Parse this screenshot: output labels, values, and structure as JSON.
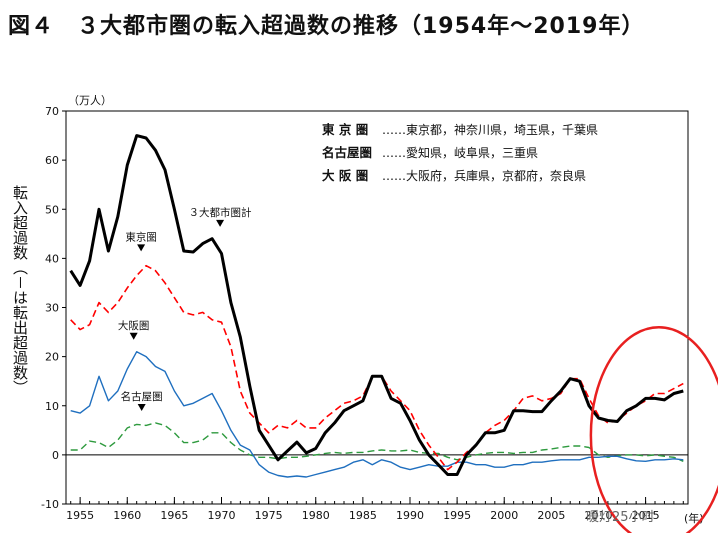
{
  "title": "図４　３大都市圏の転入超過数の推移（1954年～2019年）",
  "watermark": "暖灯25小时",
  "chart_data": {
    "type": "line",
    "title": "図４　３大都市圏の転入超過数の推移（1954年～2019年）",
    "unit_label": "（万人）",
    "ylabel": "転入超過数（－は転出超過数）",
    "xlabel": "(年)",
    "ylim": [
      -10,
      70
    ],
    "yticks": [
      -10,
      0,
      10,
      20,
      30,
      40,
      50,
      60,
      70
    ],
    "xlim": [
      1953.5,
      2019.5
    ],
    "xticks": [
      1955,
      1960,
      1965,
      1970,
      1975,
      1980,
      1985,
      1990,
      1995,
      2000,
      2005,
      2010,
      2015
    ],
    "x": [
      1954,
      1955,
      1956,
      1957,
      1958,
      1959,
      1960,
      1961,
      1962,
      1963,
      1964,
      1965,
      1966,
      1967,
      1968,
      1969,
      1970,
      1971,
      1972,
      1973,
      1974,
      1975,
      1976,
      1977,
      1978,
      1979,
      1980,
      1981,
      1982,
      1983,
      1984,
      1985,
      1986,
      1987,
      1988,
      1989,
      1990,
      1991,
      1992,
      1993,
      1994,
      1995,
      1996,
      1997,
      1998,
      1999,
      2000,
      2001,
      2002,
      2003,
      2004,
      2005,
      2006,
      2007,
      2008,
      2009,
      2010,
      2011,
      2012,
      2013,
      2014,
      2015,
      2016,
      2017,
      2018,
      2019
    ],
    "series": [
      {
        "name": "３大都市圏計",
        "color": "#000000",
        "style": "solid",
        "width": 3,
        "values": [
          37.5,
          34.5,
          39.5,
          50,
          41.5,
          48.5,
          59,
          65,
          64.5,
          62,
          58,
          50,
          41.5,
          41.3,
          43,
          44,
          41,
          31,
          24,
          14,
          5,
          2,
          -1,
          0.8,
          2.6,
          0.4,
          1.3,
          4.5,
          6.5,
          9,
          10,
          11,
          16,
          16,
          11.5,
          10.5,
          7,
          3,
          0,
          -2,
          -4,
          -4,
          0,
          2,
          4.5,
          4.5,
          5,
          9,
          9,
          8.8,
          8.8,
          11,
          13,
          15.5,
          15,
          10,
          7.5,
          7,
          6.8,
          9,
          10,
          11.5,
          11.5,
          11.2,
          12.5,
          13
        ]
      },
      {
        "name": "東京圏",
        "color": "#ff0000",
        "style": "dash",
        "width": 1.6,
        "values": [
          27.5,
          25.5,
          26.5,
          31,
          29,
          31,
          34,
          36.5,
          38.5,
          37.5,
          35,
          32,
          29,
          28.5,
          29,
          27.5,
          27,
          22,
          13,
          8.5,
          6.5,
          4.5,
          6,
          5.5,
          7,
          5.5,
          5.5,
          7.5,
          9,
          10.5,
          11,
          12,
          16,
          16,
          13,
          11,
          9,
          5,
          2,
          -0.5,
          -3,
          -1.5,
          0.5,
          2,
          4.5,
          6,
          7,
          9,
          11.5,
          12,
          11,
          11.5,
          12.5,
          15.5,
          15.5,
          11.5,
          8,
          6.5,
          7,
          8.5,
          10,
          11,
          12.5,
          12.5,
          13.5,
          14.5
        ]
      },
      {
        "name": "大阪圏",
        "color": "#1f6fbf",
        "style": "solid",
        "width": 1.4,
        "values": [
          9,
          8.5,
          10,
          16,
          11,
          13,
          17.5,
          21,
          20,
          18,
          17,
          13,
          10,
          10.5,
          11.5,
          12.5,
          9,
          5,
          2,
          1,
          -2,
          -3.5,
          -4.2,
          -4.5,
          -4.3,
          -4.5,
          -4,
          -3.5,
          -3,
          -2.5,
          -1.5,
          -1,
          -2,
          -1,
          -1.5,
          -2.5,
          -3,
          -2.5,
          -2,
          -2.3,
          -2.3,
          -1.5,
          -1.5,
          -2,
          -2,
          -2.5,
          -2.5,
          -2,
          -2,
          -1.5,
          -1.5,
          -1.2,
          -1,
          -1,
          -1,
          -0.5,
          -0.5,
          -0.3,
          -0.3,
          -0.8,
          -1.2,
          -1.3,
          -1,
          -1,
          -0.8,
          -1
        ]
      },
      {
        "name": "名古屋圏",
        "color": "#2e9a3e",
        "style": "dash",
        "width": 1.4,
        "values": [
          1,
          1,
          2.8,
          2.5,
          1.5,
          3,
          5.5,
          6.2,
          6,
          6.5,
          6,
          4.5,
          2.5,
          2.5,
          3,
          4.5,
          4.5,
          2.5,
          1,
          0,
          -0.5,
          -0.5,
          -0.8,
          -0.5,
          -0.5,
          -0.3,
          0,
          0.3,
          0.5,
          0.3,
          0.5,
          0.5,
          0.8,
          1,
          0.8,
          0.8,
          1,
          0.5,
          0.3,
          0.3,
          -0.5,
          -1,
          -0.5,
          0,
          0.3,
          0.5,
          0.5,
          0.3,
          0.5,
          0.5,
          1,
          1.2,
          1.5,
          1.8,
          1.8,
          1.5,
          0,
          -0.5,
          -0.2,
          0,
          0,
          -0.2,
          0,
          -0.3,
          -0.5,
          -1.3
        ]
      }
    ],
    "annotations": [
      {
        "text": "３大都市圏計",
        "year": 1969
      },
      {
        "text": "東京圏",
        "year": 1962
      },
      {
        "text": "大阪圏",
        "year": 1961
      },
      {
        "text": "名古屋圏",
        "year": 1961
      }
    ],
    "legend": [
      {
        "name": "東 京 圏",
        "members": "……東京都，神奈川県，埼玉県，千葉県"
      },
      {
        "name": "名古屋圏",
        "members": "……愛知県，岐阜県，三重県"
      },
      {
        "name": "大 阪 圏",
        "members": "……大阪府，兵庫県，京都府，奈良県"
      }
    ],
    "highlight": {
      "shape": "ellipse",
      "color": "#e82020",
      "from_year": 2010,
      "to_year": 2019
    }
  }
}
